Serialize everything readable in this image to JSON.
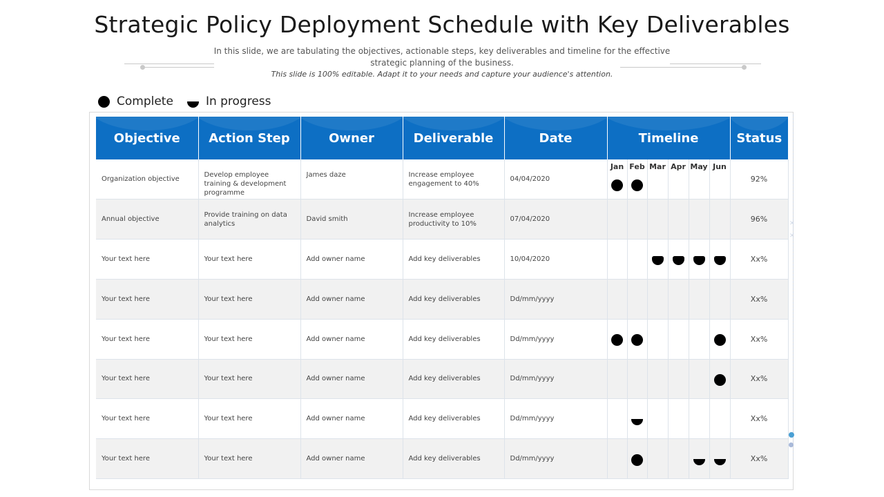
{
  "title": "Strategic Policy Deployment Schedule with Key Deliverables",
  "subtitle": "In this slide, we are tabulating the objectives, actionable steps, key deliverables and timeline for the effective strategic planning of the business.",
  "editable_note": "This slide is 100% editable. Adapt it to your needs and capture your audience's attention.",
  "legend": [
    {
      "label": "Complete",
      "icon": "full-circle-icon"
    },
    {
      "label": "In progress",
      "icon": "half-circle-icon"
    }
  ],
  "colors": {
    "header": "#0d6fc4",
    "row_alt": "#f1f1f1",
    "marker": "#000000"
  },
  "table": {
    "headers": [
      "Objective",
      "Action Step",
      "Owner",
      "Deliverable",
      "Date",
      "Timeline",
      "Status"
    ],
    "months": [
      "Jan",
      "Feb",
      "Mar",
      "Apr",
      "May",
      "Jun"
    ],
    "rows": [
      {
        "objective": "Organization objective",
        "action": "Develop employee training & development programme",
        "owner": "James daze",
        "deliverable": "Increase employee engagement to 40%",
        "date": "04/04/2020",
        "status": "92%",
        "timeline": [
          "complete",
          "complete",
          "",
          "",
          "",
          ""
        ]
      },
      {
        "objective": "Annual objective",
        "action": "Provide training on data analytics",
        "owner": "David smith",
        "deliverable": "Increase employee productivity to 10%",
        "date": "07/04/2020",
        "status": "96%",
        "timeline": [
          "",
          "",
          "",
          "",
          "",
          ""
        ]
      },
      {
        "objective": "Your text here",
        "action": "Your text here",
        "owner": "Add owner name",
        "deliverable": "Add key deliverables",
        "date": "10/04/2020",
        "status": "Xx%",
        "timeline": [
          "",
          "",
          "in-progress",
          "in-progress",
          "in-progress",
          "in-progress"
        ]
      },
      {
        "objective": "Your text here",
        "action": "Your text here",
        "owner": "Add owner name",
        "deliverable": "Add key deliverables",
        "date": "Dd/mm/yyyy",
        "status": "Xx%",
        "timeline": [
          "",
          "",
          "",
          "",
          "",
          ""
        ]
      },
      {
        "objective": "Your text here",
        "action": "Your text here",
        "owner": "Add owner name",
        "deliverable": "Add key deliverables",
        "date": "Dd/mm/yyyy",
        "status": "Xx%",
        "timeline": [
          "complete",
          "complete",
          "",
          "",
          "",
          "complete"
        ]
      },
      {
        "objective": "Your text here",
        "action": "Your text here",
        "owner": "Add owner name",
        "deliverable": "Add key deliverables",
        "date": "Dd/mm/yyyy",
        "status": "Xx%",
        "timeline": [
          "",
          "",
          "",
          "",
          "",
          "complete"
        ]
      },
      {
        "objective": "Your text here",
        "action": "Your text here",
        "owner": "Add owner name",
        "deliverable": "Add key deliverables",
        "date": "Dd/mm/yyyy",
        "status": "Xx%",
        "timeline": [
          "",
          "in-progress",
          "",
          "",
          "",
          ""
        ]
      },
      {
        "objective": "Your text here",
        "action": "Your text here",
        "owner": "Add owner name",
        "deliverable": "Add key deliverables",
        "date": "Dd/mm/yyyy",
        "status": "Xx%",
        "timeline": [
          "",
          "complete",
          "",
          "",
          "in-progress",
          "in-progress"
        ]
      }
    ]
  }
}
